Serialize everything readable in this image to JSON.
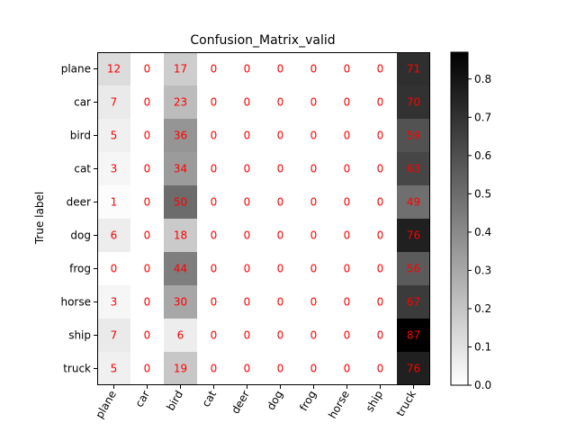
{
  "chart_data": {
    "type": "heatmap",
    "title": "Confusion_Matrix_valid",
    "ylabel": "True label",
    "xlabel": "",
    "x_categories": [
      "plane",
      "car",
      "bird",
      "cat",
      "deer",
      "dog",
      "frog",
      "horse",
      "ship",
      "truck"
    ],
    "y_categories": [
      "plane",
      "car",
      "bird",
      "cat",
      "deer",
      "dog",
      "frog",
      "horse",
      "ship",
      "truck"
    ],
    "values": [
      [
        12,
        0,
        17,
        0,
        0,
        0,
        0,
        0,
        0,
        71
      ],
      [
        7,
        0,
        23,
        0,
        0,
        0,
        0,
        0,
        0,
        70
      ],
      [
        5,
        0,
        36,
        0,
        0,
        0,
        0,
        0,
        0,
        59
      ],
      [
        3,
        0,
        34,
        0,
        0,
        0,
        0,
        0,
        0,
        63
      ],
      [
        1,
        0,
        50,
        0,
        0,
        0,
        0,
        0,
        0,
        49
      ],
      [
        6,
        0,
        18,
        0,
        0,
        0,
        0,
        0,
        0,
        76
      ],
      [
        0,
        0,
        44,
        0,
        0,
        0,
        0,
        0,
        0,
        56
      ],
      [
        3,
        0,
        30,
        0,
        0,
        0,
        0,
        0,
        0,
        67
      ],
      [
        7,
        0,
        6,
        0,
        0,
        0,
        0,
        0,
        0,
        87
      ],
      [
        5,
        0,
        19,
        0,
        0,
        0,
        0,
        0,
        0,
        76
      ]
    ],
    "colormap": "Greys",
    "color_range": [
      0,
      0.87
    ],
    "colorbar_ticks": [
      "0.0",
      "0.1",
      "0.2",
      "0.3",
      "0.4",
      "0.5",
      "0.6",
      "0.7",
      "0.8"
    ],
    "cell_text_color": "#ff0000",
    "grid": false,
    "x_tick_rotation_deg": 60
  }
}
